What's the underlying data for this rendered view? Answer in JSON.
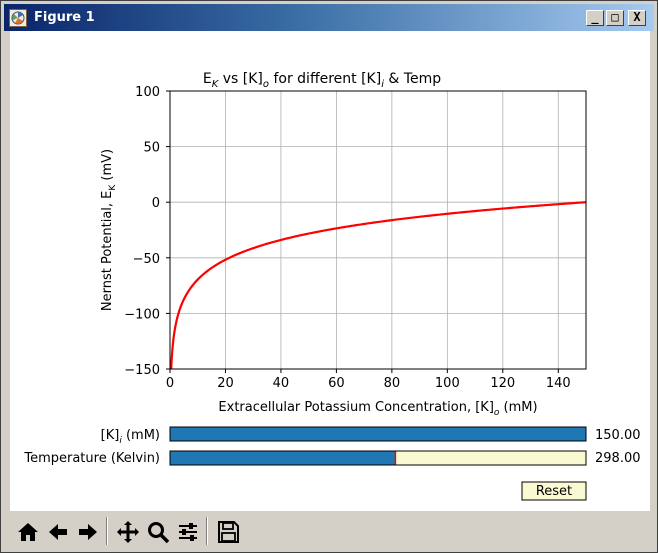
{
  "window": {
    "title": "Figure 1",
    "controls": [
      "_",
      "□",
      "X"
    ]
  },
  "chart_data": {
    "type": "line",
    "title_main": "E",
    "title_sub1": "K",
    "title_mid": " vs [K]",
    "title_sub2": "o",
    "title_end": " for different [K]",
    "title_sub3": "i",
    "title_tail": " & Temp",
    "xlabel_main": "Extracellular Potassium Concentration, [K]",
    "xlabel_sub": "o",
    "xlabel_tail": " (mM)",
    "ylabel_main": "Nernst Potential, E",
    "ylabel_sub": "K",
    "ylabel_tail": " (mV)",
    "xlim": [
      0,
      150
    ],
    "ylim": [
      -150,
      100
    ],
    "xticks": [
      0,
      20,
      40,
      60,
      80,
      100,
      120,
      140
    ],
    "yticks": [
      100,
      50,
      0,
      -50,
      -100,
      -150
    ],
    "xtick_labels": [
      "0",
      "20",
      "40",
      "60",
      "80",
      "100",
      "120",
      "140"
    ],
    "ytick_labels": [
      "100",
      "50",
      "0",
      "−50",
      "−100",
      "−150"
    ],
    "grid": true,
    "series": [
      {
        "color": "#ff0000",
        "formula": "E = (R*T/F) * ln(Ko/Ki) in mV",
        "Ki_mM": 150,
        "T_K": 298,
        "x": [
          0.5,
          1,
          2,
          3,
          5,
          7,
          10,
          15,
          20,
          30,
          40,
          50,
          60,
          70,
          80,
          90,
          100,
          110,
          120,
          130,
          140,
          150
        ],
        "y": [
          -146.5,
          -128.7,
          -110.9,
          -100.5,
          -87.4,
          -78.8,
          -69.5,
          -59.1,
          -51.7,
          -41.3,
          -33.9,
          -28.2,
          -23.5,
          -19.6,
          -16.1,
          -13.1,
          -10.4,
          -8.0,
          -5.7,
          -3.7,
          -1.8,
          0.0
        ]
      }
    ]
  },
  "sliders": [
    {
      "label_main": "[K]",
      "label_sub": "i",
      "label_tail": " (mM)",
      "value": 150,
      "min": 0,
      "max": 150,
      "value_text": "150.00",
      "fill_color": "#1f77b4",
      "track_color": "#fafad2"
    },
    {
      "label_main": "Temperature (Kelvin)",
      "label_sub": "",
      "label_tail": "",
      "value": 298,
      "min": 0,
      "max": 550,
      "value_text": "298.00",
      "fill_color": "#1f77b4",
      "track_color": "#fafad2"
    }
  ],
  "reset_button": {
    "label": "Reset",
    "color": "#fafad2"
  },
  "toolbar": {
    "buttons": [
      "home-icon",
      "back-arrow-icon",
      "forward-arrow-icon",
      "pan-icon",
      "zoom-icon",
      "configure-subplots-icon",
      "save-icon"
    ]
  }
}
